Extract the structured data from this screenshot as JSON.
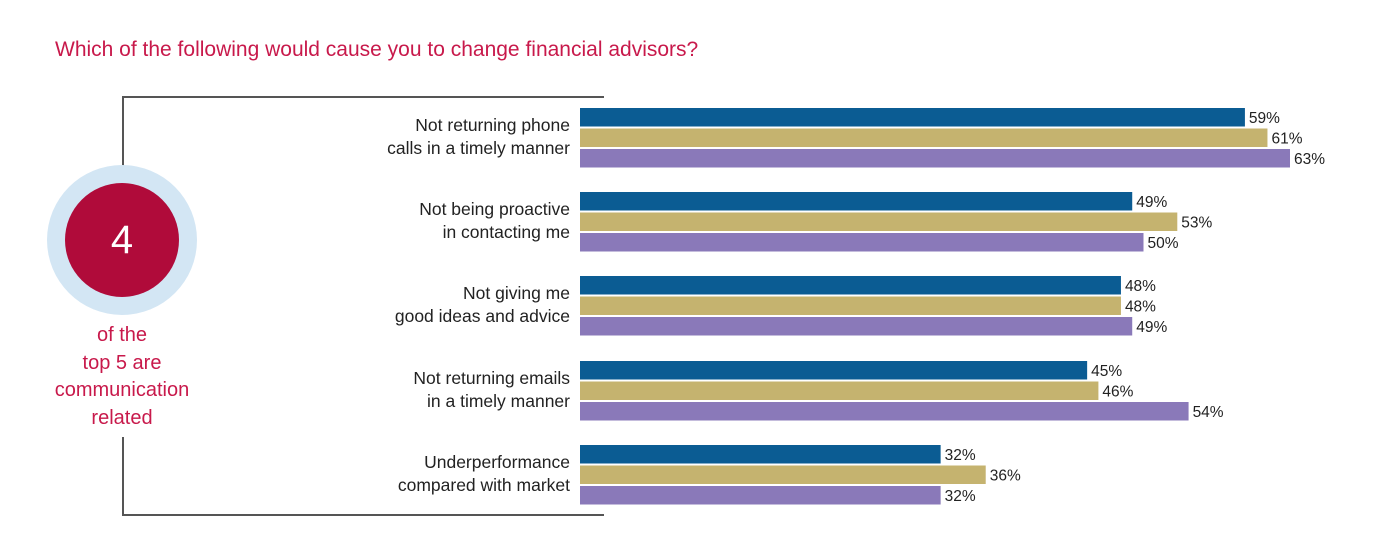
{
  "title": "Which of the following would cause you to change financial advisors?",
  "callout": {
    "number": "4",
    "lines": [
      "of the",
      "top 5 are",
      "communication",
      "related"
    ]
  },
  "colors": {
    "title": "#c8194b",
    "circle": "#b00b3a",
    "ring": "#d3e6f4"
  },
  "chart_data": {
    "type": "bar",
    "orientation": "horizontal",
    "categories": [
      [
        "Not returning phone",
        "calls in a timely manner"
      ],
      [
        "Not being proactive",
        "in contacting me"
      ],
      [
        "Not giving me",
        "good ideas and advice"
      ],
      [
        "Not returning emails",
        "in a timely manner"
      ],
      [
        "Underperformance",
        "compared with market"
      ]
    ],
    "series": [
      {
        "color": "#0b5c93",
        "values": [
          59,
          49,
          48,
          45,
          32
        ]
      },
      {
        "color": "#c5b36f",
        "values": [
          61,
          53,
          48,
          46,
          36
        ]
      },
      {
        "color": "#8a79b9",
        "values": [
          63,
          50,
          49,
          54,
          32
        ]
      }
    ],
    "unit": "%",
    "xlim": [
      0,
      63
    ],
    "grid": false
  }
}
